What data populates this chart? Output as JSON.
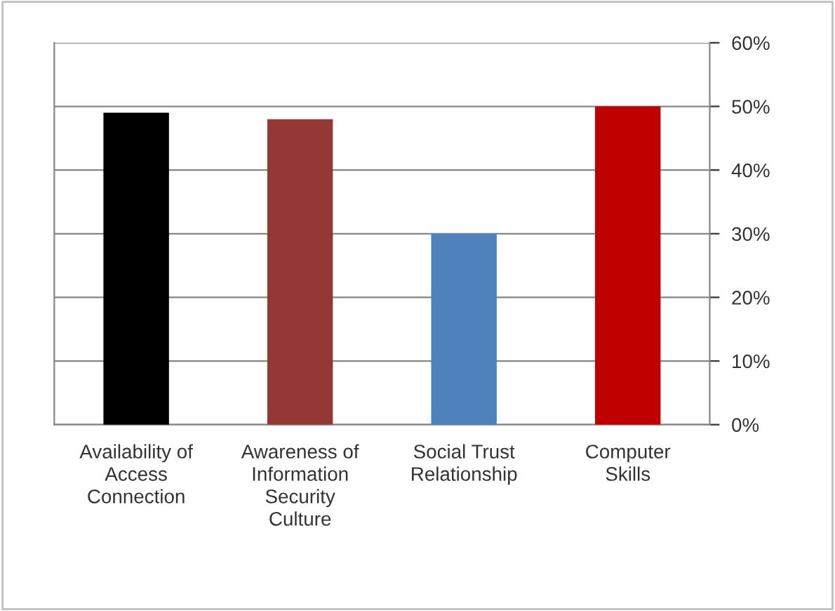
{
  "chart_data": {
    "type": "bar",
    "categories": [
      "Availability of\nAccess\nConnection",
      "Awareness of\nInformation\nSecurity\nCulture",
      "Social Trust\nRelationship",
      "Computer\nSkills"
    ],
    "values": [
      49,
      48,
      30,
      50
    ],
    "colors": [
      "#000000",
      "#953735",
      "#4f81bd",
      "#c00000"
    ],
    "ylim": [
      0,
      60
    ],
    "yticks": [
      {
        "value": 0,
        "label": "0%"
      },
      {
        "value": 10,
        "label": "10%"
      },
      {
        "value": 20,
        "label": "20%"
      },
      {
        "value": 30,
        "label": "30%"
      },
      {
        "value": 40,
        "label": "40%"
      },
      {
        "value": 50,
        "label": "50%"
      },
      {
        "value": 60,
        "label": "60%"
      }
    ],
    "grid": "y",
    "legend": false
  }
}
